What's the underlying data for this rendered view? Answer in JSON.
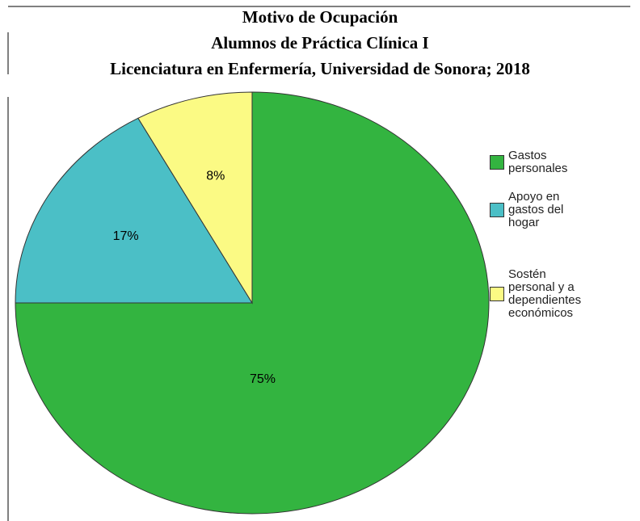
{
  "chart_data": {
    "type": "pie",
    "title": [
      "Motivo de Ocupación",
      "Alumnos de Práctica Clínica I",
      "Licenciatura en Enfermería, Universidad de Sonora; 2018"
    ],
    "categories": [
      "Gastos personales",
      "Apoyo en gastos del hogar",
      "Sostén personal y a dependientes económicos"
    ],
    "values": [
      75,
      17,
      8
    ],
    "value_labels": [
      "75%",
      "17%",
      "8%"
    ],
    "colors": [
      "#33b440",
      "#4bbfc6",
      "#fbfa84"
    ],
    "legend": "right"
  }
}
